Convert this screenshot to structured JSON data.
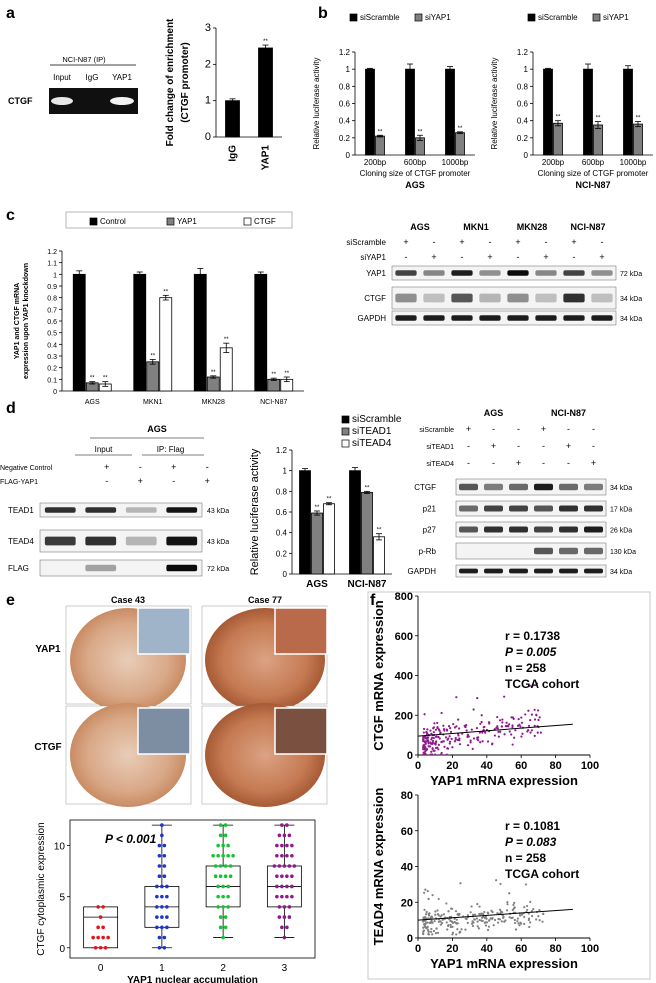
{
  "panel_letters": [
    "a",
    "b",
    "c",
    "d",
    "e",
    "f"
  ],
  "blot_a": {
    "header": "NCI-N87 (IP)",
    "lanes": [
      "Input",
      "IgG",
      "YAP1"
    ],
    "row": "CTGF"
  },
  "blot_c": {
    "cells": [
      "AGS",
      "MKN1",
      "MKN28",
      "NCI-N87"
    ],
    "conditions": [
      "siScramble",
      "siYAP1"
    ],
    "signs": [
      [
        "+",
        "-",
        "+",
        "-",
        "+",
        "-",
        "+",
        "-"
      ],
      [
        "-",
        "+",
        "-",
        "+",
        "-",
        "+",
        "-",
        "+"
      ]
    ],
    "rows": [
      "YAP1",
      "CTGF",
      "GAPDH"
    ],
    "sizes": [
      "72 kDa",
      "34 kDa",
      "34 kDa"
    ]
  },
  "blot_d1": {
    "title": "AGS",
    "groups": [
      "Input",
      "IP: Flag"
    ],
    "conditions": [
      "Negative Control",
      "FLAG-YAP1"
    ],
    "signs": [
      [
        "+",
        "-",
        "+",
        "-"
      ],
      [
        "-",
        "+",
        "-",
        "+"
      ]
    ],
    "rows": [
      "TEAD1",
      "TEAD4",
      "FLAG"
    ],
    "sizes": [
      "43 kDa",
      "43 kDa",
      "72 kDa"
    ]
  },
  "blot_d2": {
    "cells": [
      "AGS",
      "NCI-N87"
    ],
    "conditions": [
      "siScramble",
      "siTEAD1",
      "siTEAD4"
    ],
    "signs": [
      [
        "+",
        "-",
        "-",
        "+",
        "-",
        "-"
      ],
      [
        "-",
        "+",
        "-",
        "-",
        "+",
        "-"
      ],
      [
        "-",
        "-",
        "+",
        "-",
        "-",
        "+"
      ]
    ],
    "rows": [
      "CTGF",
      "p21",
      "p27",
      "p-Rb",
      "GAPDH"
    ],
    "sizes": [
      "34 kDa",
      "17 kDa",
      "26 kDa",
      "130 kDa",
      "34 kDa"
    ]
  },
  "ihc": {
    "cases": [
      "Case 43",
      "Case 77"
    ],
    "rows": [
      "YAP1",
      "CTGF"
    ]
  },
  "colors": {
    "bar_dark": "#000000",
    "bar_gray": "#808080",
    "bar_white": "#ffffff",
    "purple": "#8e1a8e",
    "gray_dot": "#808080",
    "red": "#e0151a",
    "blue": "#2034c8",
    "green": "#13c433"
  },
  "chart_data": [
    {
      "id": "a",
      "type": "bar",
      "categories": [
        "IgG",
        "YAP1"
      ],
      "values": [
        1.0,
        2.45
      ],
      "errors": [
        0.05,
        0.08
      ],
      "sig": [
        "",
        "**"
      ],
      "ylabel": "Fold change of enrichment (CTGF promoter)",
      "ylim": [
        0,
        3
      ],
      "yticks": [
        0,
        1,
        2,
        3
      ]
    },
    {
      "id": "b1",
      "type": "bar",
      "title": "AGS",
      "categories": [
        "200bp",
        "600bp",
        "1000bp"
      ],
      "series": [
        {
          "name": "siScramble",
          "values": [
            1.0,
            1.0,
            1.0
          ],
          "errors": [
            0.01,
            0.06,
            0.03
          ]
        },
        {
          "name": "siYAP1",
          "values": [
            0.22,
            0.2,
            0.26
          ],
          "errors": [
            0.01,
            0.03,
            0.01
          ]
        }
      ],
      "sig": "**",
      "ylabel": "Relative luciferase activity",
      "xlabel": "Cloning size of CTGF promoter",
      "ylim": [
        0,
        1.2
      ],
      "yticks": [
        0,
        0.2,
        0.4,
        0.6,
        0.8,
        1,
        1.2
      ]
    },
    {
      "id": "b2",
      "type": "bar",
      "title": "NCI-N87",
      "categories": [
        "200bp",
        "600bp",
        "1000bp"
      ],
      "series": [
        {
          "name": "siScramble",
          "values": [
            1.0,
            1.0,
            1.0
          ],
          "errors": [
            0.01,
            0.06,
            0.04
          ]
        },
        {
          "name": "siYAP1",
          "values": [
            0.37,
            0.35,
            0.36
          ],
          "errors": [
            0.03,
            0.04,
            0.03
          ]
        }
      ],
      "sig": "**",
      "ylabel": "Relative luciferase activity",
      "xlabel": "Cloning size of CTGF promoter",
      "ylim": [
        0,
        1.2
      ],
      "yticks": [
        0,
        0.2,
        0.4,
        0.6,
        0.8,
        1,
        1.2
      ]
    },
    {
      "id": "c",
      "type": "bar",
      "categories": [
        "AGS",
        "MKN1",
        "MKN28",
        "NCI-N87"
      ],
      "series": [
        {
          "name": "Control",
          "values": [
            1.0,
            1.0,
            1.0,
            1.0
          ],
          "errors": [
            0.03,
            0.02,
            0.05,
            0.02
          ]
        },
        {
          "name": "YAP1",
          "values": [
            0.07,
            0.25,
            0.12,
            0.1
          ],
          "errors": [
            0.01,
            0.02,
            0.01,
            0.01
          ]
        },
        {
          "name": "CTGF",
          "values": [
            0.06,
            0.8,
            0.37,
            0.1
          ],
          "errors": [
            0.02,
            0.02,
            0.04,
            0.02
          ]
        }
      ],
      "sig": "**",
      "ylabel": "YAP1 and CTGF mRNA expression upon YAP1 knockdown",
      "ylim": [
        0,
        1.2
      ],
      "yticks": [
        0,
        0.1,
        0.2,
        0.3,
        0.4,
        0.5,
        0.6,
        0.7,
        0.8,
        0.9,
        1,
        1.1,
        1.2
      ]
    },
    {
      "id": "d",
      "type": "bar",
      "categories": [
        "AGS",
        "NCI-N87"
      ],
      "series": [
        {
          "name": "siScramble",
          "values": [
            1.0,
            1.0
          ],
          "errors": [
            0.02,
            0.03
          ]
        },
        {
          "name": "siTEAD1",
          "values": [
            0.59,
            0.79
          ],
          "errors": [
            0.02,
            0.01
          ]
        },
        {
          "name": "siTEAD4",
          "values": [
            0.68,
            0.36
          ],
          "errors": [
            0.01,
            0.03
          ]
        }
      ],
      "sig": "**",
      "ylabel": "Relative luciferase activity",
      "ylim": [
        0,
        1.2
      ],
      "yticks": [
        0,
        0.2,
        0.4,
        0.6,
        0.8,
        1,
        1.2
      ]
    },
    {
      "id": "e",
      "type": "box",
      "title": "P < 0.001",
      "categories": [
        "0",
        "1",
        "2",
        "3"
      ],
      "xlabel": "YAP1 nuclear accumulation",
      "ylabel": "CTGF cytoplasmic expression",
      "ylim": [
        -1,
        12.5
      ],
      "yticks": [
        0,
        5,
        10
      ],
      "boxes": [
        {
          "min": 0,
          "q1": 0,
          "median": 3,
          "q3": 4,
          "max": 4
        },
        {
          "min": 0,
          "q1": 2,
          "median": 4,
          "q3": 6,
          "max": 12
        },
        {
          "min": 1,
          "q1": 4,
          "median": 6,
          "q3": 8,
          "max": 12
        },
        {
          "min": 1,
          "q1": 4,
          "median": 6,
          "q3": 8,
          "max": 12
        }
      ]
    },
    {
      "id": "f1",
      "type": "scatter",
      "xlabel": "YAP1 mRNA expression",
      "ylabel": "CTGF mRNA expression",
      "xlim": [
        0,
        100
      ],
      "ylim": [
        0,
        800
      ],
      "xticks": [
        0,
        20,
        40,
        60,
        80,
        100
      ],
      "yticks": [
        0,
        200,
        400,
        600,
        800
      ],
      "stats": [
        "r = 0.1738",
        "P = 0.005",
        "n = 258",
        "TCGA cohort"
      ],
      "fit": [
        [
          0,
          95
        ],
        [
          90,
          155
        ]
      ]
    },
    {
      "id": "f2",
      "type": "scatter",
      "xlabel": "YAP1 mRNA expression",
      "ylabel": "TEAD4 mRNA expression",
      "xlim": [
        0,
        100
      ],
      "ylim": [
        0,
        80
      ],
      "xticks": [
        0,
        20,
        40,
        60,
        80,
        100
      ],
      "yticks": [
        0,
        20,
        40,
        60,
        80
      ],
      "stats": [
        "r = 0.1081",
        "P = 0.083",
        "n = 258",
        "TCGA cohort"
      ],
      "fit": [
        [
          0,
          10
        ],
        [
          90,
          16
        ]
      ]
    }
  ]
}
